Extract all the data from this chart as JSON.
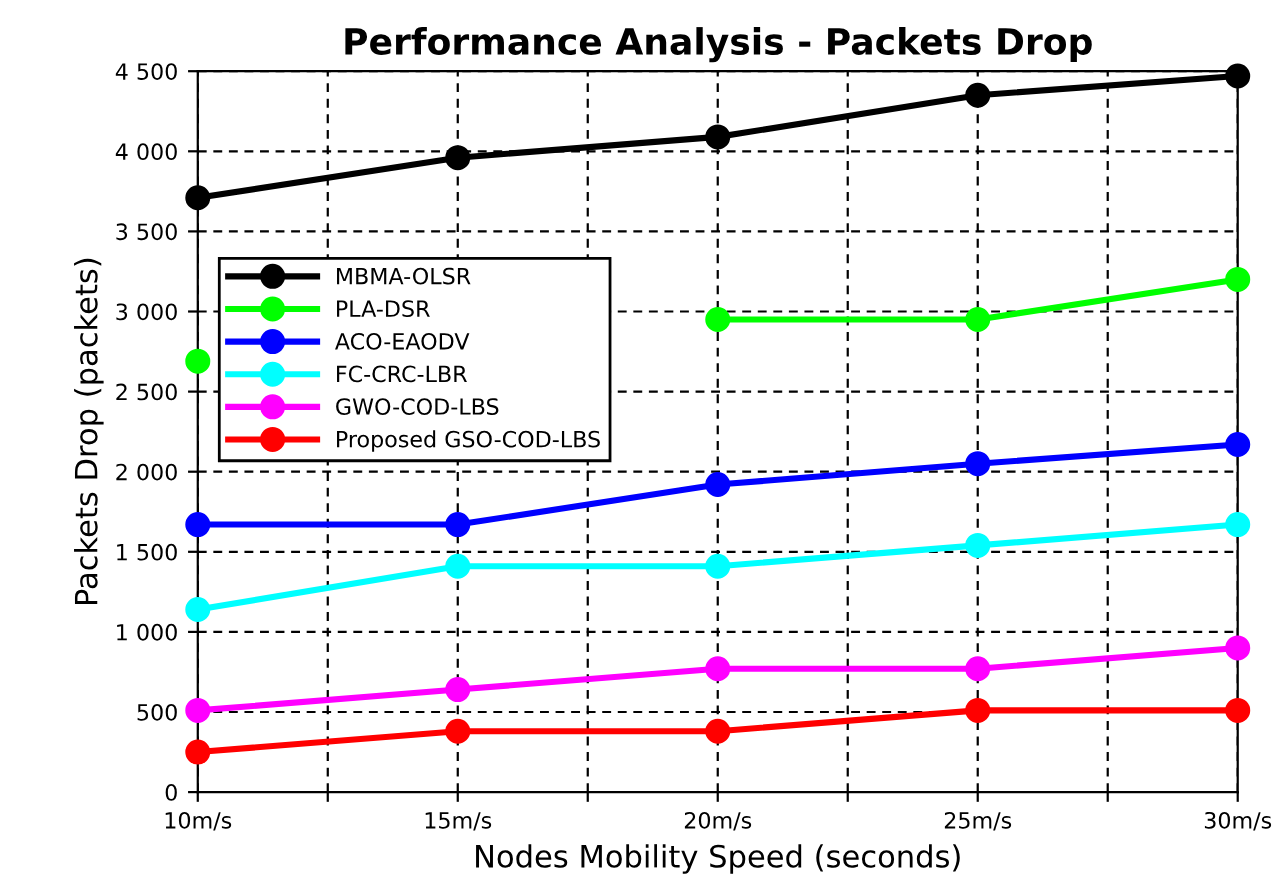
{
  "chart_data": {
    "type": "line",
    "title": "Performance Analysis - Packets Drop",
    "xlabel": "Nodes Mobility Speed (seconds)",
    "ylabel": "Packets Drop (packets)",
    "x": [
      10,
      15,
      20,
      25,
      30
    ],
    "xlim": [
      10,
      30
    ],
    "xticks": [
      {
        "value": 10,
        "label": "10m/s"
      },
      {
        "value": 12.5,
        "label": null
      },
      {
        "value": 15,
        "label": "15m/s"
      },
      {
        "value": 17.5,
        "label": null
      },
      {
        "value": 20,
        "label": "20m/s"
      },
      {
        "value": 22.5,
        "label": null
      },
      {
        "value": 25,
        "label": "25m/s"
      },
      {
        "value": 27.5,
        "label": null
      },
      {
        "value": 30,
        "label": "30m/s"
      }
    ],
    "ylim": [
      0,
      4500
    ],
    "yticks": [
      0,
      500,
      {
        "value": 1000,
        "label": "1 000"
      },
      {
        "value": 1500,
        "label": "1 500"
      },
      {
        "value": 2000,
        "label": "2 000"
      },
      {
        "value": 2500,
        "label": "2 500"
      },
      {
        "value": 3000,
        "label": "3 000"
      },
      {
        "value": 3500,
        "label": "3 500"
      },
      {
        "value": 4000,
        "label": "4 000"
      },
      {
        "value": 4500,
        "label": "4 500"
      }
    ],
    "grid": true,
    "legend": "left",
    "marker": "circle",
    "line_style": "solid",
    "series": [
      {
        "name": "MBMA-OLSR",
        "color": "#000000",
        "values": [
          3710,
          3960,
          4090,
          4350,
          4470
        ]
      },
      {
        "name": "PLA-DSR",
        "color": "#00ff00",
        "values": [
          2690,
          null,
          2950,
          2950,
          3200
        ]
      },
      {
        "name": "ACO-EAODV",
        "color": "#0000ff",
        "values": [
          1670,
          1670,
          1920,
          2050,
          2170
        ]
      },
      {
        "name": "FC-CRC-LBR",
        "color": "#00ffff",
        "values": [
          1140,
          1410,
          1410,
          1540,
          1670
        ]
      },
      {
        "name": "GWO-COD-LBS",
        "color": "#ff00ff",
        "values": [
          510,
          640,
          770,
          770,
          900
        ]
      },
      {
        "name": "Proposed GSO-COD-LBS",
        "color": "#ff0000",
        "values": [
          250,
          380,
          380,
          510,
          510
        ]
      }
    ]
  }
}
